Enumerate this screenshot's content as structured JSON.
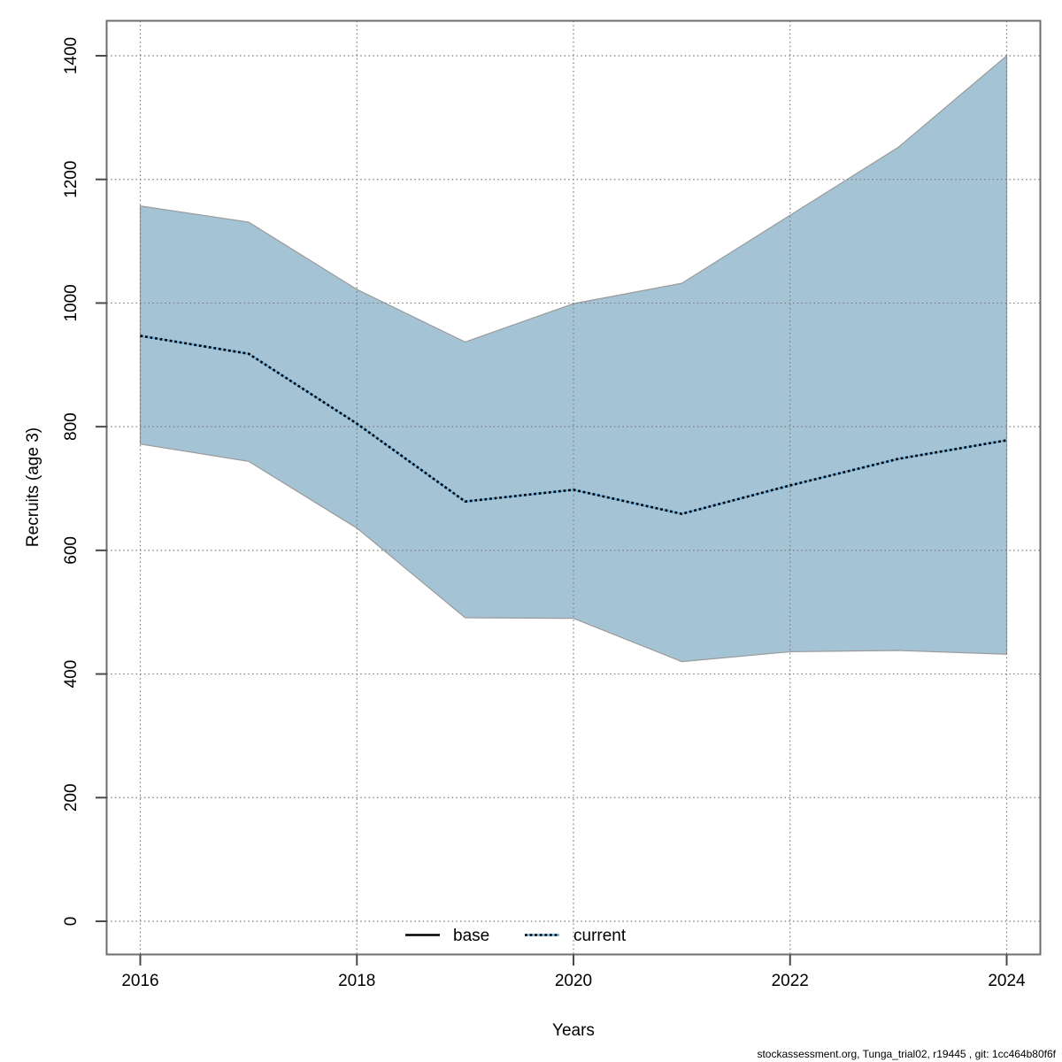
{
  "page": {
    "background": "#ffffff"
  },
  "footer": {
    "text": "stockassessment.org, Tunga_trial02, r19445 , git: 1cc464b80f6f"
  },
  "chart_data": {
    "type": "area",
    "title": "",
    "xlabel": "Years",
    "ylabel": "Recruits (age 3)",
    "x": [
      2016,
      2017,
      2018,
      2019,
      2020,
      2021,
      2022,
      2023,
      2024
    ],
    "series": [
      {
        "name": "current",
        "role": "median-line",
        "style": "dotted",
        "values": [
          947,
          918,
          805,
          679,
          698,
          659,
          705,
          748,
          778
        ]
      },
      {
        "name": "base-ci-upper",
        "role": "band-upper",
        "values": [
          1157,
          1131,
          1022,
          937,
          999,
          1032,
          1142,
          1252,
          1400
        ]
      },
      {
        "name": "base-ci-lower",
        "role": "band-lower",
        "values": [
          772,
          744,
          636,
          491,
          490,
          420,
          436,
          438,
          432
        ]
      }
    ],
    "x_ticks": [
      2016,
      2018,
      2020,
      2022,
      2024
    ],
    "y_ticks": [
      0,
      200,
      400,
      600,
      800,
      1000,
      1200,
      1400
    ],
    "xlim": [
      2016,
      2024
    ],
    "ylim": [
      0,
      1400
    ],
    "grid": true,
    "legend_position": "bottom-center",
    "legend": [
      {
        "label": "base",
        "line": "solid",
        "color": "#000000"
      },
      {
        "label": "current",
        "line": "dotted",
        "color": "#000000",
        "underlay_color": "#6fb3e0"
      }
    ],
    "colors": {
      "band_fill": "#a4c4d6",
      "band_edge": "#9a9a9a",
      "grid": "#7a7a7a",
      "box": "#6e6e6e",
      "tick": "#4a4a4a",
      "dotted_line": "#000000",
      "dotted_underlay": "#6fb3e0"
    }
  }
}
